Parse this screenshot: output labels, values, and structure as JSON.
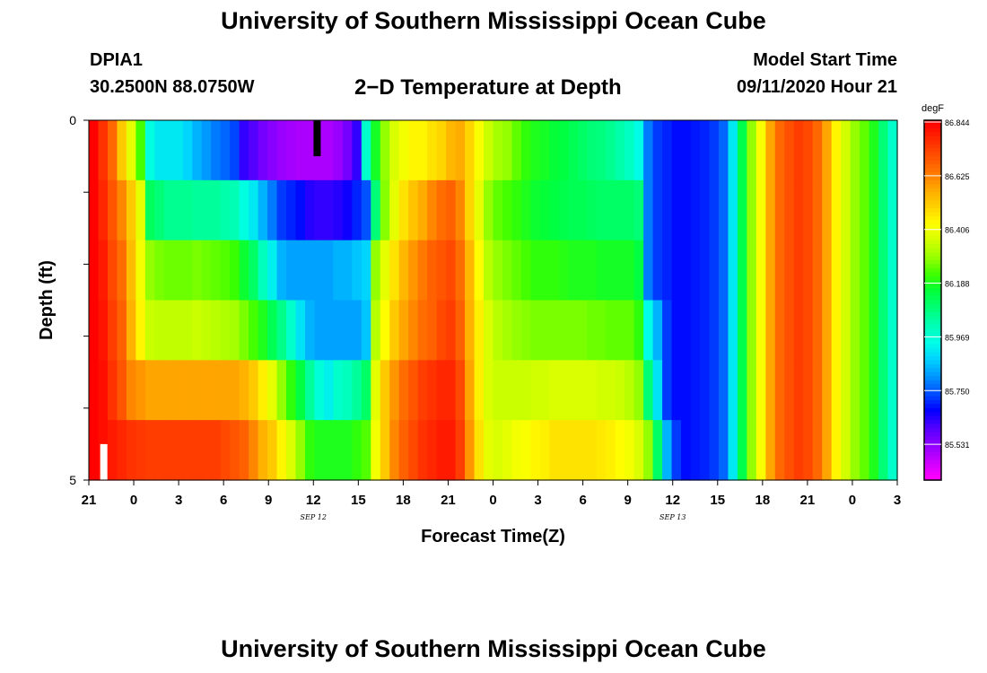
{
  "header": {
    "title": "University of Southern Mississippi Ocean Cube",
    "station": "DPIA1",
    "coords": "30.2500N 88.0750W",
    "subtitle": "2−D Temperature at Depth",
    "model_start_label": "Model Start Time",
    "model_start_value": "09/11/2020 Hour 21"
  },
  "footer": {
    "title": "University of Southern Mississippi Ocean Cube"
  },
  "chart_data": {
    "type": "heatmap",
    "xlabel": "Forecast Time(Z)",
    "ylabel": "Depth (ft)",
    "x_tick_labels": [
      "21",
      "0",
      "3",
      "6",
      "9",
      "12",
      "15",
      "18",
      "21",
      "0",
      "3",
      "6",
      "9",
      "12",
      "15",
      "18",
      "21",
      "0",
      "3"
    ],
    "x_date_labels": [
      {
        "text": "SEP 12",
        "at_hours": 15
      },
      {
        "text": "SEP 13",
        "at_hours": 39
      }
    ],
    "x_hours_range": [
      0,
      54
    ],
    "y_tick_labels": [
      "0",
      "5"
    ],
    "y_range": [
      0,
      5
    ],
    "depth_rows": [
      0,
      1,
      2,
      3,
      4,
      5
    ],
    "colorbar": {
      "unit": "degF",
      "labels": [
        "86.844",
        "86.625",
        "86.406",
        "86.188",
        "85.969",
        "85.750",
        "85.531"
      ],
      "min": 85.42,
      "max": 86.844,
      "palette": [
        "#ff00ff",
        "#c800ff",
        "#8c00ff",
        "#5000ff",
        "#0000ff",
        "#0050ff",
        "#0096ff",
        "#00d2ff",
        "#00ffe6",
        "#00ffb4",
        "#00ff78",
        "#00ff3c",
        "#3cff00",
        "#96ff00",
        "#d2ff00",
        "#ffff00",
        "#ffd200",
        "#ffaa00",
        "#ff7800",
        "#ff5000",
        "#ff2800",
        "#ff0000"
      ]
    },
    "temperature_degF": [
      [
        86.84,
        86.76,
        86.67,
        86.52,
        86.4,
        86.24,
        85.97,
        85.93,
        85.93,
        85.93,
        85.9,
        85.86,
        85.83,
        85.8,
        85.78,
        85.75,
        85.65,
        85.62,
        85.58,
        85.56,
        85.54,
        85.53,
        85.52,
        85.52,
        85.52,
        85.52,
        85.54,
        85.58,
        85.65,
        86.0,
        86.19,
        86.3,
        86.38,
        86.42,
        86.45,
        86.45,
        86.48,
        86.5,
        86.55,
        86.57,
        86.5,
        86.43,
        86.36,
        86.32,
        86.3,
        86.26,
        86.22,
        86.2,
        86.19,
        86.17,
        86.16,
        86.14,
        86.12,
        86.1,
        86.09,
        86.07,
        86.04,
        86.01,
        85.96,
        85.8,
        85.74,
        85.72,
        85.7,
        85.7,
        85.71,
        85.72,
        85.74,
        85.78,
        85.93,
        86.15,
        86.3,
        86.43,
        86.58,
        86.67,
        86.71,
        86.74,
        86.72,
        86.67,
        86.58,
        86.45,
        86.37,
        86.3,
        86.26,
        86.2,
        86.1,
        86.0
      ],
      [
        86.84,
        86.78,
        86.7,
        86.62,
        86.52,
        86.4,
        86.13,
        86.1,
        86.07,
        86.07,
        86.07,
        86.06,
        86.06,
        86.06,
        86.04,
        86.03,
        85.97,
        85.93,
        85.86,
        85.8,
        85.74,
        85.72,
        85.7,
        85.66,
        85.65,
        85.65,
        85.66,
        85.68,
        85.72,
        85.76,
        86.1,
        86.29,
        86.4,
        86.48,
        86.53,
        86.57,
        86.62,
        86.66,
        86.68,
        86.62,
        86.5,
        86.4,
        86.3,
        86.26,
        86.24,
        86.22,
        86.2,
        86.18,
        86.17,
        86.16,
        86.15,
        86.14,
        86.14,
        86.13,
        86.12,
        86.12,
        86.12,
        86.12,
        86.1,
        85.8,
        85.74,
        85.72,
        85.7,
        85.7,
        85.71,
        85.72,
        85.74,
        85.78,
        85.93,
        86.15,
        86.3,
        86.43,
        86.58,
        86.67,
        86.71,
        86.74,
        86.72,
        86.67,
        86.58,
        86.45,
        86.37,
        86.3,
        86.26,
        86.2,
        86.1,
        86.0
      ],
      [
        86.84,
        86.8,
        86.72,
        86.66,
        86.54,
        86.42,
        86.3,
        86.28,
        86.27,
        86.27,
        86.27,
        86.28,
        86.27,
        86.26,
        86.25,
        86.23,
        86.18,
        86.12,
        86.02,
        85.94,
        85.86,
        85.84,
        85.84,
        85.84,
        85.84,
        85.84,
        85.86,
        85.86,
        85.88,
        85.9,
        86.3,
        86.4,
        86.48,
        86.55,
        86.6,
        86.64,
        86.68,
        86.7,
        86.72,
        86.66,
        86.55,
        86.44,
        86.34,
        86.3,
        86.28,
        86.26,
        86.24,
        86.22,
        86.22,
        86.22,
        86.21,
        86.2,
        86.2,
        86.2,
        86.19,
        86.19,
        86.19,
        86.19,
        86.16,
        85.8,
        85.74,
        85.72,
        85.7,
        85.7,
        85.71,
        85.72,
        85.74,
        85.78,
        85.93,
        86.15,
        86.3,
        86.43,
        86.58,
        86.67,
        86.71,
        86.74,
        86.72,
        86.67,
        86.58,
        86.45,
        86.37,
        86.3,
        86.26,
        86.2,
        86.1,
        86.0
      ],
      [
        86.84,
        86.81,
        86.74,
        86.68,
        86.56,
        86.45,
        86.36,
        86.35,
        86.35,
        86.35,
        86.35,
        86.36,
        86.35,
        86.34,
        86.33,
        86.32,
        86.28,
        86.24,
        86.2,
        86.14,
        86.08,
        86.0,
        85.92,
        85.86,
        85.84,
        85.84,
        85.84,
        85.84,
        85.84,
        85.88,
        86.34,
        86.44,
        86.52,
        86.58,
        86.62,
        86.66,
        86.68,
        86.72,
        86.74,
        86.68,
        86.56,
        86.46,
        86.38,
        86.34,
        86.32,
        86.3,
        86.29,
        86.28,
        86.28,
        86.28,
        86.28,
        86.28,
        86.28,
        86.27,
        86.27,
        86.26,
        86.26,
        86.26,
        86.22,
        85.96,
        85.86,
        85.74,
        85.7,
        85.7,
        85.71,
        85.72,
        85.74,
        85.78,
        85.93,
        86.15,
        86.3,
        86.43,
        86.58,
        86.67,
        86.71,
        86.74,
        86.72,
        86.67,
        86.58,
        86.45,
        86.37,
        86.3,
        86.26,
        86.2,
        86.1,
        86.0
      ],
      [
        86.84,
        86.82,
        86.76,
        86.7,
        86.62,
        86.6,
        86.58,
        86.58,
        86.58,
        86.58,
        86.58,
        86.58,
        86.58,
        86.58,
        86.58,
        86.58,
        86.56,
        86.52,
        86.46,
        86.4,
        86.3,
        86.22,
        86.16,
        86.06,
        85.98,
        85.94,
        86.0,
        86.02,
        86.06,
        86.12,
        86.4,
        86.52,
        86.6,
        86.66,
        86.7,
        86.74,
        86.76,
        86.78,
        86.78,
        86.72,
        86.58,
        86.46,
        86.38,
        86.36,
        86.36,
        86.36,
        86.36,
        86.37,
        86.37,
        86.38,
        86.38,
        86.38,
        86.38,
        86.38,
        86.37,
        86.37,
        86.36,
        86.34,
        86.3,
        86.1,
        85.92,
        85.74,
        85.7,
        85.7,
        85.71,
        85.72,
        85.74,
        85.78,
        85.93,
        86.15,
        86.3,
        86.43,
        86.58,
        86.67,
        86.71,
        86.74,
        86.72,
        86.67,
        86.58,
        86.45,
        86.37,
        86.3,
        86.26,
        86.2,
        86.1,
        86.0
      ],
      [
        86.84,
        86.82,
        86.8,
        86.78,
        86.76,
        86.75,
        86.74,
        86.74,
        86.74,
        86.74,
        86.74,
        86.74,
        86.74,
        86.74,
        86.72,
        86.7,
        86.68,
        86.62,
        86.56,
        86.52,
        86.45,
        86.38,
        86.3,
        86.22,
        86.2,
        86.2,
        86.2,
        86.2,
        86.22,
        86.25,
        86.42,
        86.52,
        86.62,
        86.68,
        86.72,
        86.76,
        86.78,
        86.8,
        86.8,
        86.74,
        86.6,
        86.48,
        86.4,
        86.38,
        86.4,
        86.42,
        86.43,
        86.45,
        86.46,
        86.48,
        86.48,
        86.48,
        86.48,
        86.48,
        86.47,
        86.46,
        86.44,
        86.42,
        86.38,
        86.3,
        86.12,
        85.86,
        85.74,
        85.7,
        85.71,
        85.72,
        85.74,
        85.78,
        85.93,
        86.15,
        86.3,
        86.43,
        86.58,
        86.67,
        86.71,
        86.74,
        86.72,
        86.67,
        86.58,
        86.45,
        86.37,
        86.3,
        86.26,
        86.2,
        86.1,
        86.0
      ]
    ],
    "markers": [
      {
        "color": "#000000",
        "hours": 15.25,
        "depth_from": 0,
        "depth_to": 0.5
      },
      {
        "color": "#ffffff",
        "hours": 1.0,
        "depth_from": 4.5,
        "depth_to": 5
      }
    ]
  }
}
